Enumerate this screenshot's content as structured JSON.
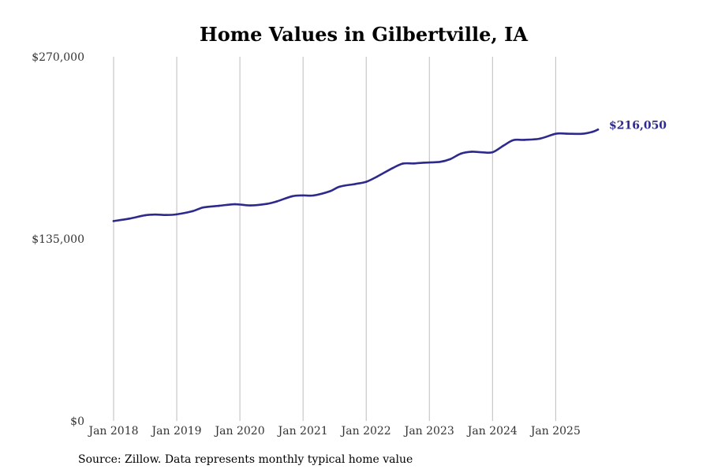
{
  "chart_data": {
    "type": "line",
    "title": "Home Values in Gilbertville, IA",
    "xlabel": "",
    "ylabel": "",
    "source": "Source: Zillow. Data represents monthly typical home value",
    "ylim": [
      0,
      270000
    ],
    "yticks": [
      {
        "value": 0,
        "label": "$0"
      },
      {
        "value": 135000,
        "label": "$135,000"
      },
      {
        "value": 270000,
        "label": "$270,000"
      }
    ],
    "xlim": [
      2018.0,
      2025.92
    ],
    "xticks": [
      {
        "value": 2018,
        "label": "Jan 2018"
      },
      {
        "value": 2019,
        "label": "Jan 2019"
      },
      {
        "value": 2020,
        "label": "Jan 2020"
      },
      {
        "value": 2021,
        "label": "Jan 2021"
      },
      {
        "value": 2022,
        "label": "Jan 2022"
      },
      {
        "value": 2023,
        "label": "Jan 2023"
      },
      {
        "value": 2024,
        "label": "Jan 2024"
      },
      {
        "value": 2025,
        "label": "Jan 2025"
      }
    ],
    "grid": "vertical",
    "series": [
      {
        "name": "Typical home value",
        "color": "#2e2a8c",
        "end_label": "$216,050",
        "points": [
          [
            2018.0,
            148200
          ],
          [
            2018.25,
            150000
          ],
          [
            2018.5,
            152500
          ],
          [
            2018.67,
            153000
          ],
          [
            2018.83,
            152700
          ],
          [
            2019.0,
            153200
          ],
          [
            2019.25,
            155500
          ],
          [
            2019.42,
            158300
          ],
          [
            2019.67,
            159500
          ],
          [
            2019.92,
            160700
          ],
          [
            2020.17,
            159800
          ],
          [
            2020.42,
            160900
          ],
          [
            2020.58,
            162700
          ],
          [
            2020.83,
            166600
          ],
          [
            2021.0,
            167200
          ],
          [
            2021.17,
            167200
          ],
          [
            2021.42,
            170200
          ],
          [
            2021.58,
            173700
          ],
          [
            2021.83,
            175700
          ],
          [
            2022.0,
            177300
          ],
          [
            2022.17,
            181100
          ],
          [
            2022.42,
            187500
          ],
          [
            2022.58,
            190800
          ],
          [
            2022.75,
            190900
          ],
          [
            2022.92,
            191500
          ],
          [
            2023.17,
            192100
          ],
          [
            2023.33,
            194100
          ],
          [
            2023.5,
            198200
          ],
          [
            2023.67,
            199600
          ],
          [
            2023.83,
            199200
          ],
          [
            2024.0,
            199200
          ],
          [
            2024.17,
            204000
          ],
          [
            2024.33,
            208200
          ],
          [
            2024.5,
            208400
          ],
          [
            2024.75,
            209300
          ],
          [
            2025.0,
            212900
          ],
          [
            2025.17,
            213000
          ],
          [
            2025.42,
            212900
          ],
          [
            2025.58,
            214300
          ],
          [
            2025.67,
            216050
          ]
        ]
      }
    ]
  }
}
